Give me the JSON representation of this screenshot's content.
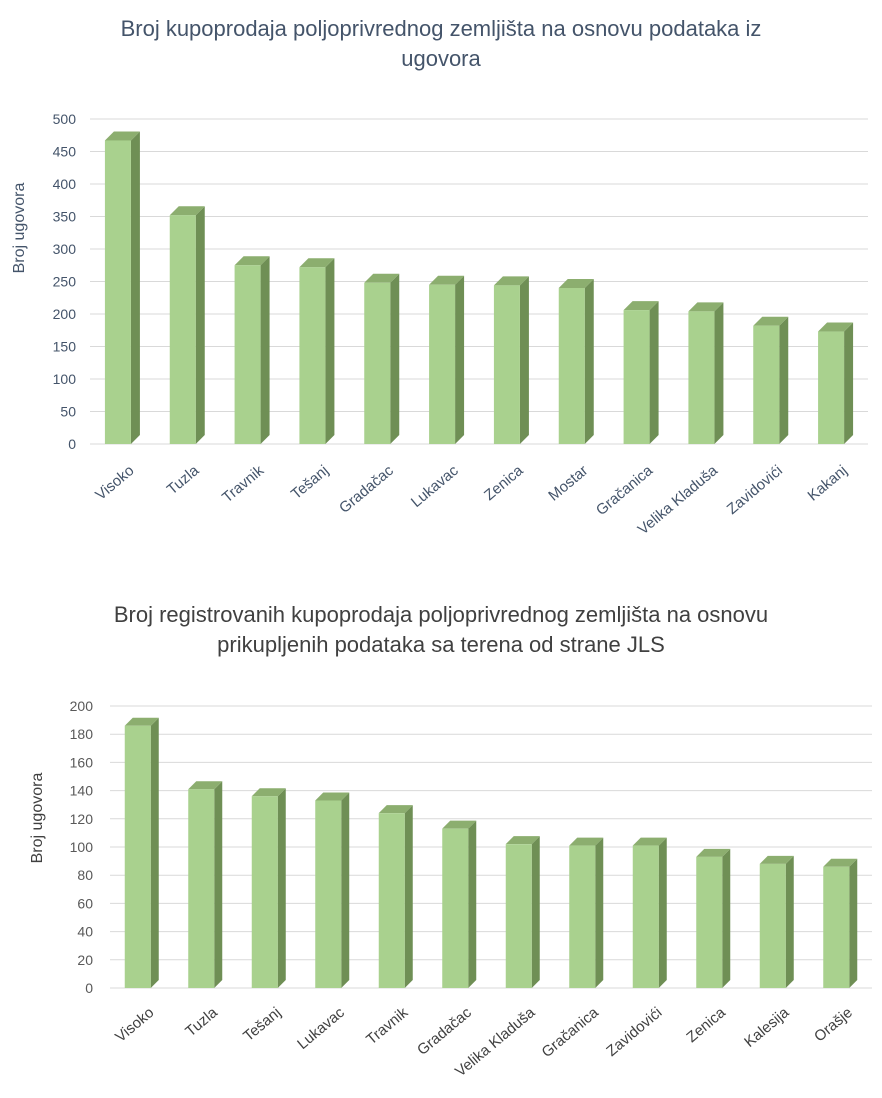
{
  "chart_data": [
    {
      "type": "bar",
      "title": "Broj kupoprodaja poljoprivrednog zemljišta na osnovu podataka iz ugovora",
      "title_lines": [
        "Broj kupoprodaja poljoprivrednog zemljišta na osnovu podataka iz",
        "ugovora"
      ],
      "ylabel": "Broj ugovora",
      "xlabel": "",
      "ylim": [
        0,
        500
      ],
      "yticks": [
        0,
        50,
        100,
        150,
        200,
        250,
        300,
        350,
        400,
        450,
        500
      ],
      "categories": [
        "Visoko",
        "Tuzla",
        "Travnik",
        "Tešanj",
        "Gradačac",
        "Lukavac",
        "Zenica",
        "Mostar",
        "Gračanica",
        "Velika Kladuša",
        "Zavidovići",
        "Kakanj"
      ],
      "values": [
        467,
        352,
        275,
        272,
        248,
        245,
        244,
        240,
        206,
        204,
        182,
        173
      ],
      "grid": true,
      "bar_style": "3d",
      "colors": {
        "front": "#a9d18e",
        "side": "#6f8f55",
        "top": "#8cae6f"
      }
    },
    {
      "type": "bar",
      "title": "Broj registrovanih kupoprodaja poljoprivrednog zemljišta na osnovu prikupljenih podataka sa terena od strane JLS",
      "title_lines": [
        "Broj registrovanih kupoprodaja poljoprivrednog zemljišta na osnovu",
        "prikupljenih podataka sa terena od strane JLS"
      ],
      "ylabel": "Broj ugovora",
      "xlabel": "",
      "ylim": [
        0,
        200
      ],
      "yticks": [
        0,
        20,
        40,
        60,
        80,
        100,
        120,
        140,
        160,
        180,
        200
      ],
      "categories": [
        "Visoko",
        "Tuzla",
        "Tešanj",
        "Lukavac",
        "Travnik",
        "Gradačac",
        "Velika Kladuša",
        "Gračanica",
        "Zavidovići",
        "Zenica",
        "Kalesija",
        "Orašje"
      ],
      "values": [
        186,
        141,
        136,
        133,
        124,
        113,
        102,
        101,
        101,
        93,
        88,
        86
      ],
      "grid": true,
      "bar_style": "3d",
      "colors": {
        "front": "#a9d18e",
        "side": "#6f8f55",
        "top": "#8cae6f"
      }
    }
  ]
}
